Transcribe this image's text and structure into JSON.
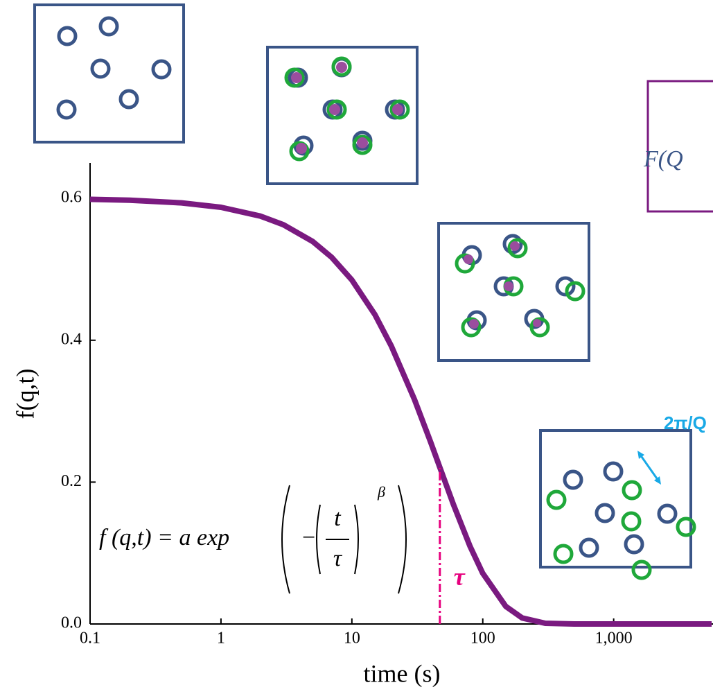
{
  "chart_data": {
    "type": "line",
    "y_label": "f(q,t)",
    "x_label": "time (s)",
    "x_scale": "log",
    "xlim": [
      0.1,
      5600
    ],
    "ylim": [
      0,
      0.65
    ],
    "xticks": [
      0.1,
      1,
      10,
      100,
      {
        "value": 1000,
        "label": "1,000"
      }
    ],
    "yticks": [
      {
        "value": 0,
        "label": "0.0"
      },
      0.2,
      0.4,
      0.6
    ],
    "x": [
      0.1,
      0.2,
      0.5,
      1,
      2,
      3,
      5,
      7,
      10,
      15,
      20,
      30,
      40,
      47,
      60,
      80,
      100,
      150,
      200,
      300,
      500,
      1000,
      5600
    ],
    "series": [
      {
        "color": "#7a1a80",
        "values": [
          0.5987,
          0.5974,
          0.5937,
          0.5874,
          0.575,
          0.5629,
          0.5395,
          0.517,
          0.485,
          0.4361,
          0.392,
          0.3169,
          0.2562,
          0.2207,
          0.1674,
          0.1094,
          0.0715,
          0.0247,
          0.0085,
          0.001,
          0,
          0,
          0
        ]
      }
    ],
    "markers": [
      {
        "label": "τ",
        "x": 47,
        "y": 0.22,
        "color": "#e6007e"
      }
    ],
    "formula": {
      "lhs": "f (q,t) = a exp",
      "numerator": "t",
      "denominator": "τ",
      "exponent": "β"
    },
    "annotations": [
      "2π/Q",
      "F(Q"
    ]
  }
}
